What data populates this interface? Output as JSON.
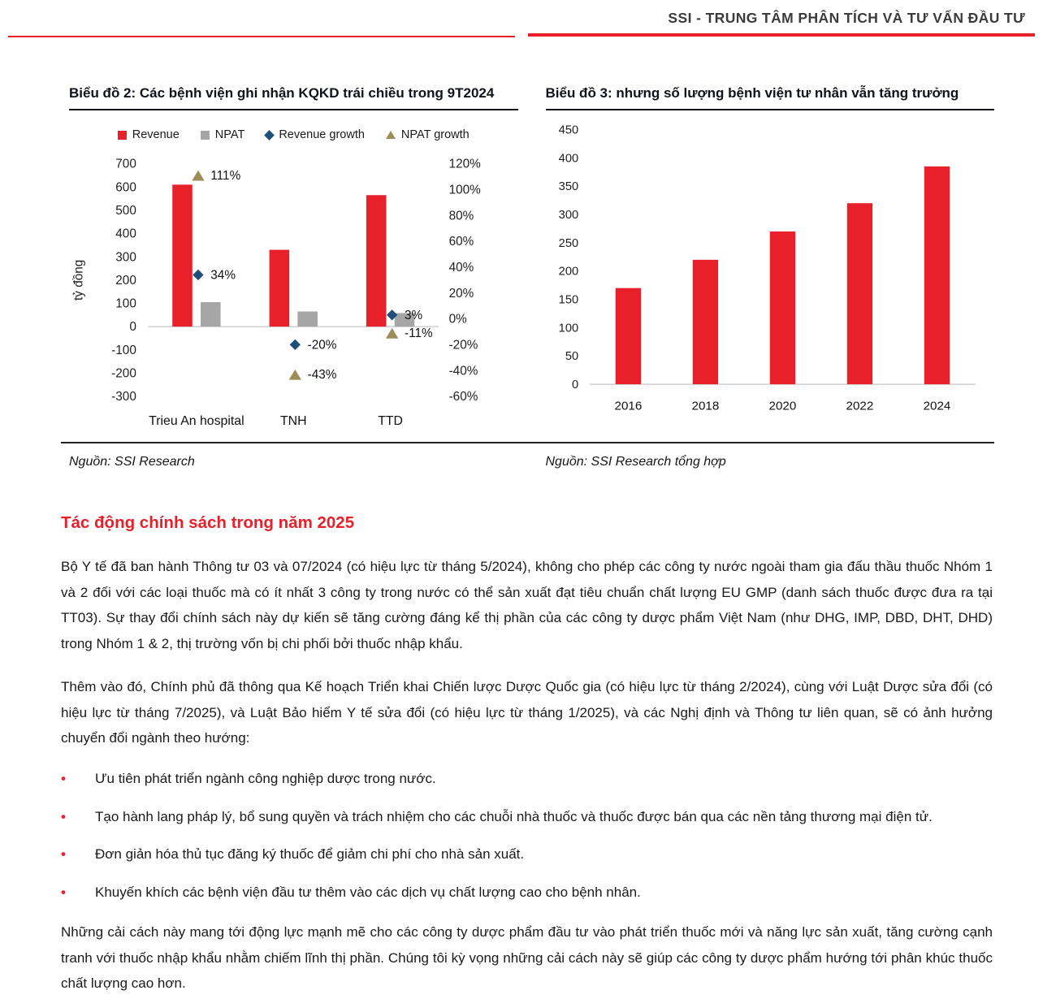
{
  "header": {
    "title": "SSI - TRUNG TÂM PHÂN TÍCH VÀ TƯ VẤN ĐẦU TƯ"
  },
  "colors": {
    "red": "#E8202A",
    "gray": "#A6A6A6",
    "blue": "#1F4E79",
    "tan": "#9C8C55"
  },
  "charts": {
    "left": {
      "title": "Biểu đồ 2: Các bệnh viện ghi nhận KQKD trái chiều trong 9T2024",
      "source": "Nguồn: SSI Research"
    },
    "right": {
      "title": "Biểu đồ 3: nhưng số lượng bệnh viện tư nhân vẫn tăng trưởng",
      "source": "Nguồn: SSI Research tổng hợp"
    }
  },
  "chart_data": [
    {
      "type": "bar",
      "title": "Biểu đồ 2: Các bệnh viện ghi nhận KQKD trái chiều trong 9T2024",
      "categories": [
        "Trieu An hospital",
        "TNH",
        "TTD"
      ],
      "left_axis": {
        "label": "tỷ đồng",
        "min": -300,
        "max": 700,
        "step": 100
      },
      "right_axis": {
        "min": -60,
        "max": 120,
        "step": 20,
        "suffix": "%"
      },
      "legend_position": "top",
      "grid": false,
      "series": [
        {
          "name": "Revenue",
          "shape": "bar",
          "axis": "left",
          "color": "#E8202A",
          "values": [
            610,
            330,
            565
          ]
        },
        {
          "name": "NPAT",
          "shape": "bar",
          "axis": "left",
          "color": "#A6A6A6",
          "values": [
            105,
            65,
            58
          ]
        },
        {
          "name": "Revenue growth",
          "shape": "diamond",
          "axis": "right",
          "color": "#1F4E79",
          "values": [
            34,
            -20,
            3
          ],
          "labels": [
            "34%",
            "-20%",
            "3%"
          ]
        },
        {
          "name": "NPAT growth",
          "shape": "triangle",
          "axis": "right",
          "color": "#9C8C55",
          "values": [
            111,
            -43,
            -11
          ],
          "labels": [
            "111%",
            "-43%",
            "-11%"
          ]
        }
      ]
    },
    {
      "type": "bar",
      "title": "Biểu đồ 3: nhưng số lượng bệnh viện tư nhân vẫn tăng trưởng",
      "categories": [
        "2016",
        "2018",
        "2020",
        "2022",
        "2024"
      ],
      "values": [
        170,
        220,
        270,
        320,
        385
      ],
      "color": "#E8202A",
      "ylim": [
        0,
        450
      ],
      "ystep": 50,
      "grid": false
    }
  ],
  "section": {
    "heading": "Tác động chính sách trong năm 2025",
    "paragraphs": [
      "Bộ Y tế đã ban hành Thông tư 03 và 07/2024 (có hiệu lực từ tháng 5/2024), không cho phép các công ty nước ngoài tham gia đấu thầu thuốc Nhóm 1 và 2 đối với các loại thuốc mà có ít nhất 3 công ty trong nước có thể sản xuất đạt tiêu chuẩn chất lượng EU GMP (danh sách thuốc được đưa ra tại TT03). Sự thay đổi chính sách này dự kiến sẽ tăng cường đáng kể thị phần của các công ty dược phẩm Việt Nam (như DHG, IMP, DBD, DHT, DHD) trong Nhóm 1 & 2, thị trường vốn bị chi phối bởi thuốc nhập khẩu.",
      "Thêm vào đó, Chính phủ đã thông qua Kế hoạch Triển khai Chiến lược Dược Quốc gia (có hiệu lực từ tháng 2/2024), cùng với Luật Dược sửa đổi (có hiệu lực từ tháng 7/2025), và Luật Bảo hiểm Y tế sửa đổi (có hiệu lực từ tháng 1/2025), và các Nghị định và Thông tư liên quan, sẽ có ảnh hưởng chuyển đổi ngành theo hướng:"
    ],
    "bullets": [
      "Ưu tiên phát triển ngành công nghiệp dược trong nước.",
      "Tạo hành lang pháp lý, bổ sung quyền và trách nhiệm cho các chuỗi nhà thuốc và thuốc được bán qua các nền tảng thương mại điện tử.",
      "Đơn giản hóa thủ tục đăng ký thuốc để giảm chi phí cho nhà sản xuất.",
      "Khuyến khích các bệnh viện đầu tư thêm vào các dịch vụ chất lượng cao cho bệnh nhân."
    ],
    "closing": "Những cải cách này mang tới động lực mạnh mẽ cho các công ty dược phẩm đầu tư vào phát triển thuốc mới và năng lực sản xuất, tăng cường cạnh tranh với thuốc nhập khẩu nhằm chiếm lĩnh thị phần. Chúng tôi kỳ vọng những cải cách này sẽ giúp các công ty dược phẩm hướng tới phân khúc thuốc chất lượng cao hơn."
  }
}
